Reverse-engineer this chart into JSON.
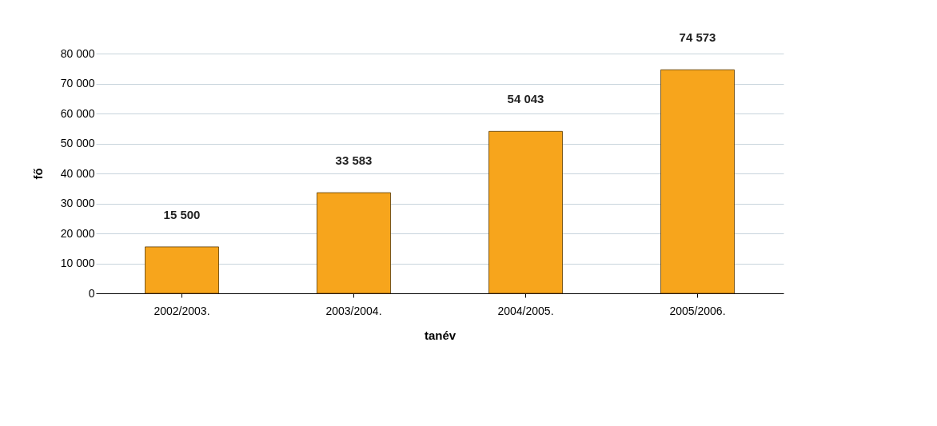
{
  "chart_data": {
    "type": "bar",
    "xlabel": "tanév",
    "ylabel": "fő",
    "categories": [
      "2002/2003.",
      "2003/2004.",
      "2004/2005.",
      "2005/2006."
    ],
    "values": [
      15500,
      33583,
      54043,
      74573
    ],
    "color": "#f7a51c",
    "value_labels": [
      "15 500",
      "33 583",
      "54 043",
      "74 573"
    ],
    "ylim": [
      0,
      80000
    ],
    "yticks": [
      {
        "value": 0,
        "label": "0"
      },
      {
        "value": 10000,
        "label": "10 000"
      },
      {
        "value": 20000,
        "label": "20 000"
      },
      {
        "value": 30000,
        "label": "30 000"
      },
      {
        "value": 40000,
        "label": "40 000"
      },
      {
        "value": 50000,
        "label": "50 000"
      },
      {
        "value": 60000,
        "label": "60 000"
      },
      {
        "value": 70000,
        "label": "70 000"
      },
      {
        "value": 80000,
        "label": "80 000"
      }
    ],
    "grid": "y"
  }
}
